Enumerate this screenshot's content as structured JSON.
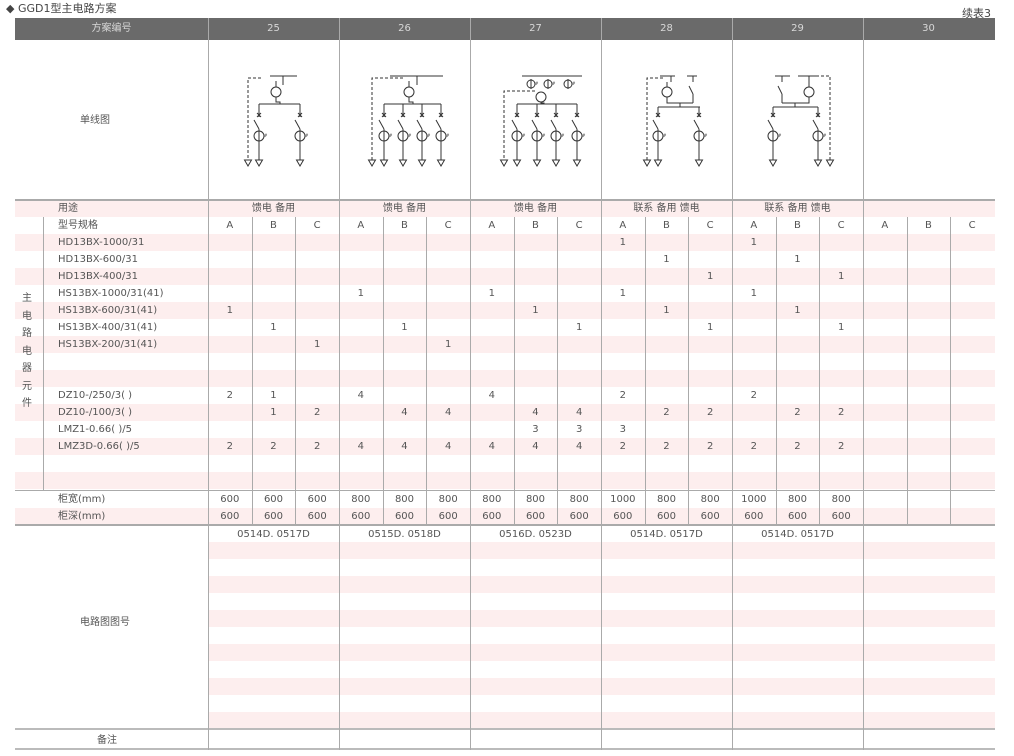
{
  "title": "◆ GGD1型主电路方案",
  "continuation": "续表3",
  "header": {
    "label": "方案编号",
    "schemes": [
      "25",
      "26",
      "27",
      "28",
      "29",
      "30"
    ]
  },
  "diagram_label": "单线图",
  "usage": {
    "label": "用途",
    "values": [
      "馈电 备用",
      "馈电 备用",
      "馈电 备用",
      "联系 备用 馈电",
      "联系 备用 馈电",
      ""
    ]
  },
  "spec_label": "型号规格",
  "sub_cols": [
    "A",
    "B",
    "C"
  ],
  "group_label": [
    "主",
    "电",
    "路",
    "电",
    "器",
    "元",
    "件"
  ],
  "components": [
    {
      "name": "HD13BX-1000/31",
      "values": [
        "",
        "",
        "",
        "",
        "",
        "",
        "",
        "",
        "",
        "1",
        "",
        "",
        "1",
        "",
        "",
        "",
        "",
        ""
      ]
    },
    {
      "name": "HD13BX-600/31",
      "values": [
        "",
        "",
        "",
        "",
        "",
        "",
        "",
        "",
        "",
        "",
        "1",
        "",
        "",
        "1",
        "",
        "",
        "",
        ""
      ]
    },
    {
      "name": "HD13BX-400/31",
      "values": [
        "",
        "",
        "",
        "",
        "",
        "",
        "",
        "",
        "",
        "",
        "",
        "1",
        "",
        "",
        "1",
        "",
        "",
        ""
      ]
    },
    {
      "name": "HS13BX-1000/31(41)",
      "values": [
        "",
        "",
        "",
        "1",
        "",
        "",
        "1",
        "",
        "",
        "1",
        "",
        "",
        "1",
        "",
        "",
        "",
        "",
        ""
      ]
    },
    {
      "name": "HS13BX-600/31(41)",
      "values": [
        "1",
        "",
        "",
        "",
        "",
        "",
        "",
        "1",
        "",
        "",
        "1",
        "",
        "",
        "1",
        "",
        "",
        "",
        ""
      ]
    },
    {
      "name": "HS13BX-400/31(41)",
      "values": [
        "",
        "1",
        "",
        "",
        "1",
        "",
        "",
        "",
        "1",
        "",
        "",
        "1",
        "",
        "",
        "1",
        "",
        "",
        ""
      ]
    },
    {
      "name": "HS13BX-200/31(41)",
      "values": [
        "",
        "",
        "1",
        "",
        "",
        "1",
        "",
        "",
        "",
        "",
        "",
        "",
        "",
        "",
        "",
        "",
        "",
        ""
      ]
    },
    {
      "name": "",
      "values": [
        "",
        "",
        "",
        "",
        "",
        "",
        "",
        "",
        "",
        "",
        "",
        "",
        "",
        "",
        "",
        "",
        "",
        ""
      ]
    },
    {
      "name": "",
      "values": [
        "",
        "",
        "",
        "",
        "",
        "",
        "",
        "",
        "",
        "",
        "",
        "",
        "",
        "",
        "",
        "",
        "",
        ""
      ]
    },
    {
      "name": "DZ10-/250/3( )",
      "values": [
        "2",
        "1",
        "",
        "4",
        "",
        "",
        "4",
        "",
        "",
        "2",
        "",
        "",
        "2",
        "",
        "",
        "",
        "",
        ""
      ]
    },
    {
      "name": "DZ10-/100/3( )",
      "values": [
        "",
        "1",
        "2",
        "",
        "4",
        "4",
        "",
        "4",
        "4",
        "",
        "2",
        "2",
        "",
        "2",
        "2",
        "",
        "",
        ""
      ]
    },
    {
      "name": "LMZ1-0.66( )/5",
      "values": [
        "",
        "",
        "",
        "",
        "",
        "",
        "",
        "3",
        "3",
        "3",
        "",
        "",
        "",
        "",
        "",
        "",
        "",
        ""
      ]
    },
    {
      "name": "LMZ3D-0.66( )/5",
      "values": [
        "2",
        "2",
        "2",
        "4",
        "4",
        "4",
        "4",
        "4",
        "4",
        "2",
        "2",
        "2",
        "2",
        "2",
        "2",
        "",
        "",
        ""
      ]
    },
    {
      "name": "",
      "values": [
        "",
        "",
        "",
        "",
        "",
        "",
        "",
        "",
        "",
        "",
        "",
        "",
        "",
        "",
        "",
        "",
        "",
        ""
      ]
    },
    {
      "name": "",
      "values": [
        "",
        "",
        "",
        "",
        "",
        "",
        "",
        "",
        "",
        "",
        "",
        "",
        "",
        "",
        "",
        "",
        "",
        ""
      ]
    }
  ],
  "width": {
    "label": "柜宽(mm)",
    "values": [
      "600",
      "600",
      "600",
      "800",
      "800",
      "800",
      "800",
      "800",
      "800",
      "1000",
      "800",
      "800",
      "1000",
      "800",
      "800",
      "",
      "",
      ""
    ]
  },
  "depth": {
    "label": "柜深(mm)",
    "values": [
      "600",
      "600",
      "600",
      "600",
      "600",
      "600",
      "600",
      "600",
      "600",
      "600",
      "600",
      "600",
      "600",
      "600",
      "600",
      "",
      "",
      ""
    ]
  },
  "circuit": {
    "label": "电路图图号",
    "values": [
      "0514D. 0517D",
      "0515D. 0518D",
      "0516D. 0523D",
      "0514D. 0517D",
      "0514D. 0517D",
      ""
    ]
  },
  "remarks": {
    "label": "备注"
  },
  "colors": {
    "header_bg": "#6a6a6a",
    "stripe": "#fdeeee",
    "text": "#555555"
  }
}
